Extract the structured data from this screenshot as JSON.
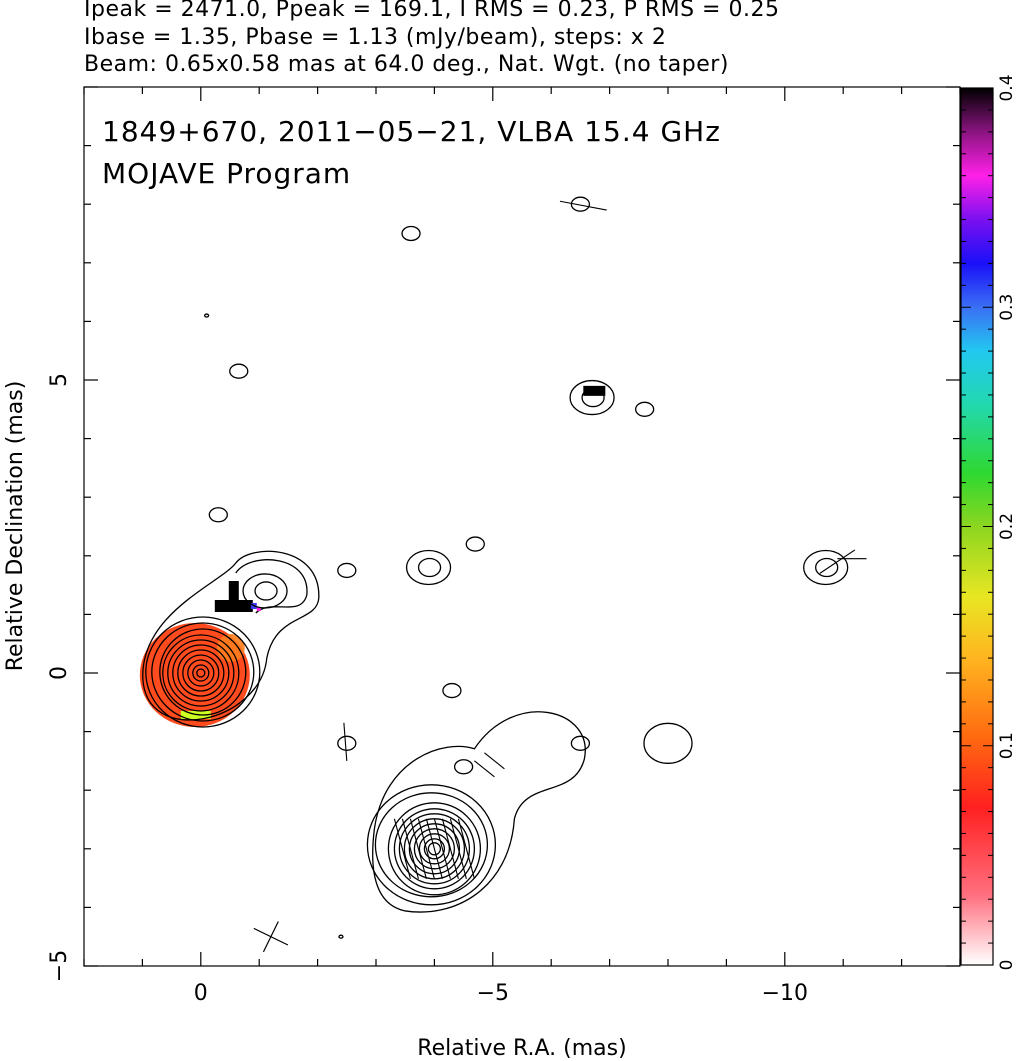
{
  "header": {
    "line1": "Ipeak = 2471.0, Ppeak = 169.1, I RMS = 0.23, P RMS = 0.25",
    "line2": "Ibase = 1.35, Pbase = 1.13 (mJy/beam), steps: x 2",
    "line3": "Beam: 0.65x0.58 mas at 64.0 deg., Nat. Wgt. (no taper)"
  },
  "chart_data": {
    "type": "contour",
    "title": "1849+670, 2011−05−21, VLBA 15.4 GHz",
    "subtitle": "MOJAVE Program",
    "xlabel": "Relative R.A. (mas)",
    "ylabel": "Relative Declination (mas)",
    "xlim": [
      2,
      -13
    ],
    "ylim": [
      -5,
      10
    ],
    "x_ticks": [
      0,
      -5,
      -10
    ],
    "x_tick_labels": [
      "0",
      "−5",
      "−10"
    ],
    "y_ticks": [
      -5,
      0,
      5
    ],
    "y_tick_labels": [
      "−5",
      "0",
      "5"
    ],
    "colorbar": {
      "range": [
        0,
        0.4
      ],
      "ticks": [
        0,
        0.1,
        0.2,
        0.3,
        0.4
      ],
      "tick_labels": [
        "0",
        "0.1",
        "0.2",
        "0.3",
        "0.4"
      ]
    },
    "contour_base_mJy_per_beam": 1.35,
    "contour_step_factor": 2,
    "core": {
      "x": 0,
      "y": 0,
      "n_contours": 11
    },
    "components": [
      {
        "x": -4.0,
        "y": -3.0,
        "n_contours": 11
      },
      {
        "x": -1.1,
        "y": 1.4,
        "n_contours": 2
      },
      {
        "x": -6.7,
        "y": 4.7,
        "n_contours": 2
      },
      {
        "x": -3.9,
        "y": 1.8,
        "n_contours": 2
      },
      {
        "x": -4.5,
        "y": -1.6,
        "n_contours": 1
      },
      {
        "x": -10.7,
        "y": 1.8,
        "n_contours": 2
      },
      {
        "x": -6.5,
        "y": 8.0,
        "n_contours": 1
      },
      {
        "x": -8.0,
        "y": -1.2,
        "n_contours": 1
      },
      {
        "x": -2.5,
        "y": -1.2,
        "n_contours": 1
      },
      {
        "x": -2.5,
        "y": 1.75,
        "n_contours": 1
      },
      {
        "x": -6.5,
        "y": -1.2,
        "n_contours": 1
      },
      {
        "x": -0.3,
        "y": 2.7,
        "n_contours": 1
      },
      {
        "x": -4.3,
        "y": -0.3,
        "n_contours": 1
      },
      {
        "x": -3.6,
        "y": 7.5,
        "n_contours": 1
      },
      {
        "x": -7.6,
        "y": 4.5,
        "n_contours": 1
      },
      {
        "x": -0.65,
        "y": 5.15,
        "n_contours": 1
      },
      {
        "x": -4.7,
        "y": 2.2,
        "n_contours": 1
      },
      {
        "x": -0.1,
        "y": 6.1,
        "n_contours": 1
      },
      {
        "x": -2.4,
        "y": -4.5,
        "n_contours": 1
      }
    ],
    "beam": {
      "major_mas": 0.65,
      "minor_mas": 0.58,
      "pa_deg": 64.0
    },
    "colors": {
      "core_fill": "#ff4b1e",
      "core_edge": "#ff7d1e",
      "pol_spot_low": "#cdff22",
      "pol_spot_high": "#000000"
    }
  }
}
